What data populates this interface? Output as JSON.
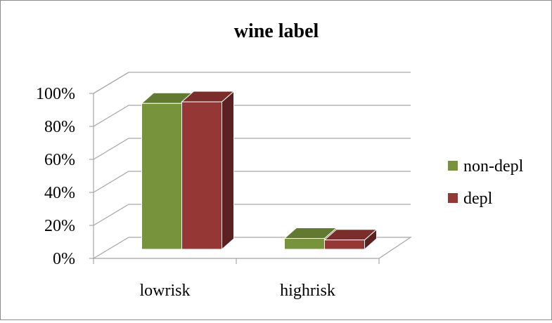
{
  "chart_data": {
    "type": "bar",
    "title": "wine label",
    "categories": [
      "lowrisk",
      "highrisk"
    ],
    "series": [
      {
        "name": "non-depl",
        "values": [
          94,
          7
        ],
        "color": "#77933c"
      },
      {
        "name": "depl",
        "values": [
          95,
          6
        ],
        "color": "#953735"
      }
    ],
    "ylim": [
      0,
      100
    ],
    "yticks": [
      "0%",
      "20%",
      "40%",
      "60%",
      "80%",
      "100%"
    ],
    "y_format": "percent",
    "grid": true,
    "legend_position": "right",
    "style": "3d-clustered-column"
  }
}
